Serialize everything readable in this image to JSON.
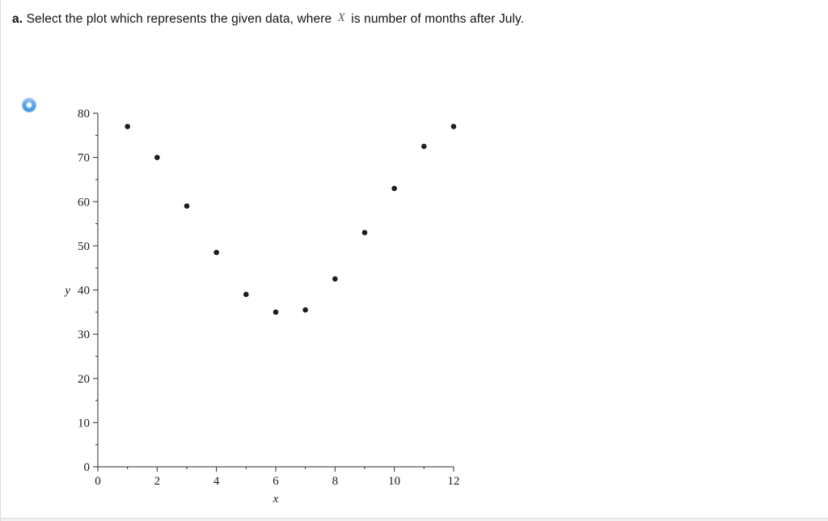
{
  "question": {
    "label": "a.",
    "text_before": "Select the plot which represents the given data, where",
    "variable": "X",
    "text_after": "is number of months after July."
  },
  "option": {
    "selected": true,
    "control": "radio-button"
  },
  "chart_data": {
    "type": "scatter",
    "title": "",
    "xlabel": "x",
    "ylabel": "y",
    "x": [
      1,
      2,
      3,
      4,
      5,
      6,
      7,
      8,
      9,
      10,
      11,
      12
    ],
    "y": [
      77,
      70,
      59,
      48.5,
      39,
      35,
      35.5,
      42.5,
      53,
      63,
      72.5,
      77
    ],
    "xlim": [
      0,
      12
    ],
    "ylim": [
      0,
      80
    ],
    "x_ticks": [
      0,
      2,
      4,
      6,
      8,
      10,
      12
    ],
    "y_ticks": [
      0,
      10,
      20,
      30,
      40,
      50,
      60,
      70,
      80
    ],
    "x_minor_step": 1,
    "y_minor_step": 5,
    "grid": false,
    "legend": false,
    "point_color": "#1c1c1c"
  }
}
